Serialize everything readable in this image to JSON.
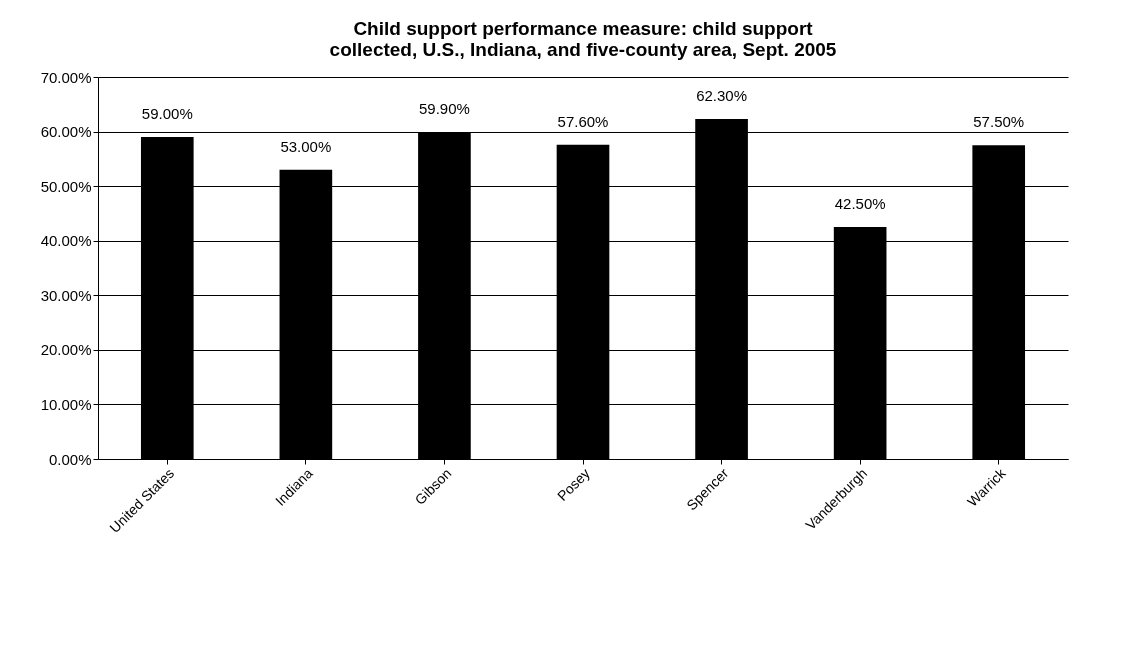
{
  "chart_data": {
    "type": "bar",
    "title": "Child support performance measure: child support\ncollected, U.S., Indiana, and five-county area, Sept. 2005",
    "categories": [
      "United States",
      "Indiana",
      "Gibson",
      "Posey",
      "Spencer",
      "Vanderburgh",
      "Warrick"
    ],
    "values": [
      59.0,
      53.0,
      59.9,
      57.6,
      62.3,
      42.5,
      57.5
    ],
    "value_labels": [
      "59.00%",
      "53.00%",
      "59.90%",
      "57.60%",
      "62.30%",
      "42.50%",
      "57.50%"
    ],
    "color": "#000000",
    "ylim": [
      0,
      70
    ],
    "yticks": [
      {
        "value": 0,
        "label": "0.00%"
      },
      {
        "value": 10,
        "label": "10.00%"
      },
      {
        "value": 20,
        "label": "20.00%"
      },
      {
        "value": 30,
        "label": "30.00%"
      },
      {
        "value": 40,
        "label": "40.00%"
      },
      {
        "value": 50,
        "label": "50.00%"
      },
      {
        "value": 60,
        "label": "60.00%"
      },
      {
        "value": 70,
        "label": "70.00%"
      }
    ],
    "grid": "y"
  }
}
